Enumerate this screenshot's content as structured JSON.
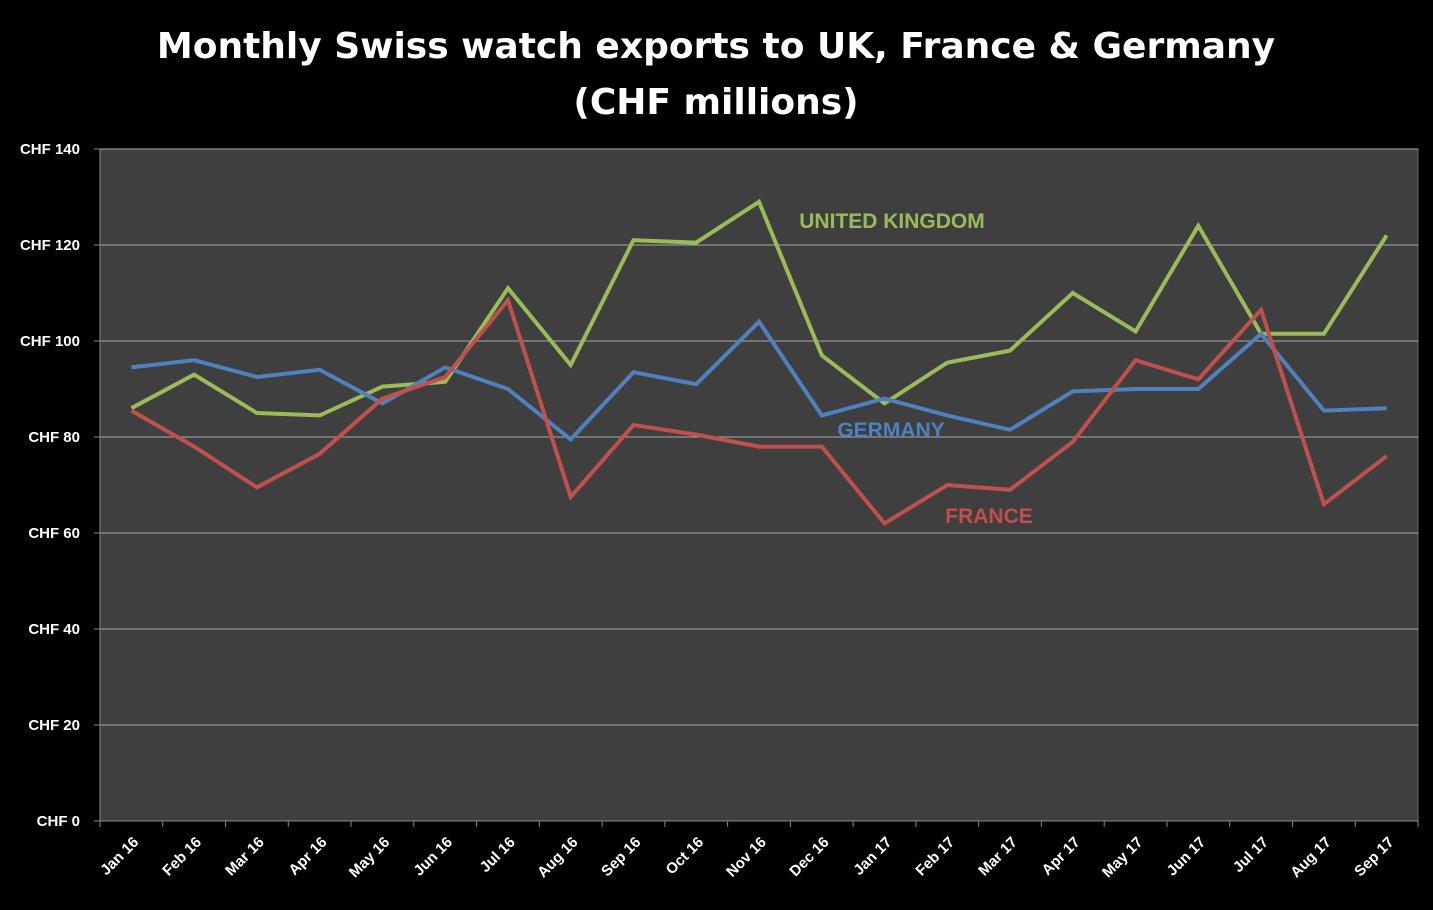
{
  "chart_data": {
    "type": "line",
    "title": "Monthly Swiss watch exports to UK, France & Germany",
    "subtitle": "(CHF millions)",
    "xlabel": "",
    "ylabel": "",
    "ylim": [
      0,
      140
    ],
    "y_ticks": [
      0,
      20,
      40,
      60,
      80,
      100,
      120,
      140
    ],
    "y_tick_labels": [
      "CHF 0",
      "CHF 20",
      "CHF 40",
      "CHF 60",
      "CHF 80",
      "CHF 100",
      "CHF 120",
      "CHF 140"
    ],
    "grid": true,
    "legend": "inline labels",
    "categories": [
      "Jan 16",
      "Feb 16",
      "Mar 16",
      "Apr 16",
      "May 16",
      "Jun 16",
      "Jul 16",
      "Aug 16",
      "Sep 16",
      "Oct 16",
      "Nov 16",
      "Dec 16",
      "Jan 17",
      "Feb 17",
      "Mar 17",
      "Apr 17",
      "May 17",
      "Jun 17",
      "Jul 17",
      "Aug 17",
      "Sep 17"
    ],
    "series": [
      {
        "name": "UNITED KINGDOM",
        "color": "#9bbb59",
        "values": [
          86,
          93,
          85,
          84.5,
          90.5,
          91.5,
          111,
          95,
          121,
          120.5,
          129,
          97,
          87,
          95.5,
          98,
          110,
          102,
          124,
          101.5,
          101.5,
          122
        ]
      },
      {
        "name": "GERMANY",
        "color": "#4f81bd",
        "values": [
          94.5,
          96,
          92.5,
          94,
          87,
          94.5,
          90,
          79.5,
          93.5,
          91,
          104,
          84.5,
          88,
          84.5,
          81.5,
          89.5,
          90,
          90,
          101.5,
          85.5,
          86
        ]
      },
      {
        "name": "FRANCE",
        "color": "#c0504d",
        "values": [
          85.5,
          78,
          69.5,
          76.5,
          88,
          92.5,
          108.5,
          67.5,
          82.5,
          80.5,
          78,
          78,
          62,
          70,
          69,
          79,
          96,
          92,
          106.5,
          66,
          76
        ]
      }
    ]
  },
  "colors": {
    "background": "#000000",
    "plot_background": "#3f3f3f",
    "grid": "#aaaaaa",
    "text": "#ffffff"
  }
}
